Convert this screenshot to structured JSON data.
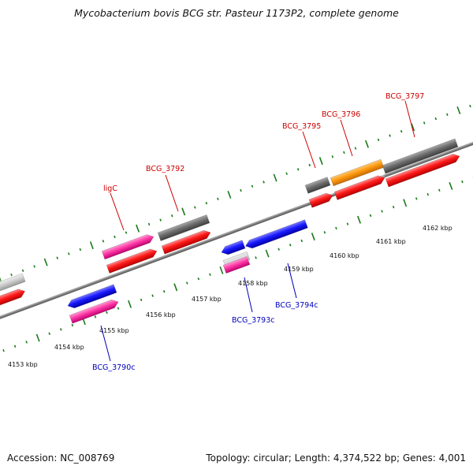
{
  "title": "Mycobacterium bovis BCG str. Pasteur 1173P2, complete genome",
  "footer": {
    "accession": "Accession: NC_008769",
    "summary": "Topology: circular; Length: 4,374,522 bp; Genes: 4,001"
  },
  "colors": {
    "forward_label": "#cc0000",
    "reverse_label": "#0000bb",
    "tick": "#1a7a1a",
    "backbone": "#808080"
  },
  "ruler": {
    "unit": "kbp",
    "labels": [
      {
        "kbp": 4153,
        "text": "4153 kbp"
      },
      {
        "kbp": 4154,
        "text": "4154 kbp"
      },
      {
        "kbp": 4155,
        "text": "4155 kbp"
      },
      {
        "kbp": 4156,
        "text": "4156 kbp"
      },
      {
        "kbp": 4157,
        "text": "4157 kbp"
      },
      {
        "kbp": 4158,
        "text": "4158 kbp"
      },
      {
        "kbp": 4159,
        "text": "4159 kbp"
      },
      {
        "kbp": 4160,
        "text": "4160 kbp"
      },
      {
        "kbp": 4161,
        "text": "4161 kbp"
      },
      {
        "kbp": 4162,
        "text": "4162 kbp"
      }
    ]
  },
  "genes": [
    {
      "name": "ligC",
      "strand": "+",
      "label": "ligC"
    },
    {
      "name": "BCG_3792",
      "strand": "+",
      "label": "BCG_3792"
    },
    {
      "name": "BCG_3795",
      "strand": "+",
      "label": "BCG_3795"
    },
    {
      "name": "BCG_3796",
      "strand": "+",
      "label": "BCG_3796"
    },
    {
      "name": "BCG_3797",
      "strand": "+",
      "label": "BCG_3797"
    },
    {
      "name": "BCG_3790c",
      "strand": "-",
      "label": "BCG_3790c"
    },
    {
      "name": "BCG_3793c",
      "strand": "-",
      "label": "BCG_3793c"
    },
    {
      "name": "BCG_3794c",
      "strand": "-",
      "label": "BCG_3794c"
    }
  ]
}
